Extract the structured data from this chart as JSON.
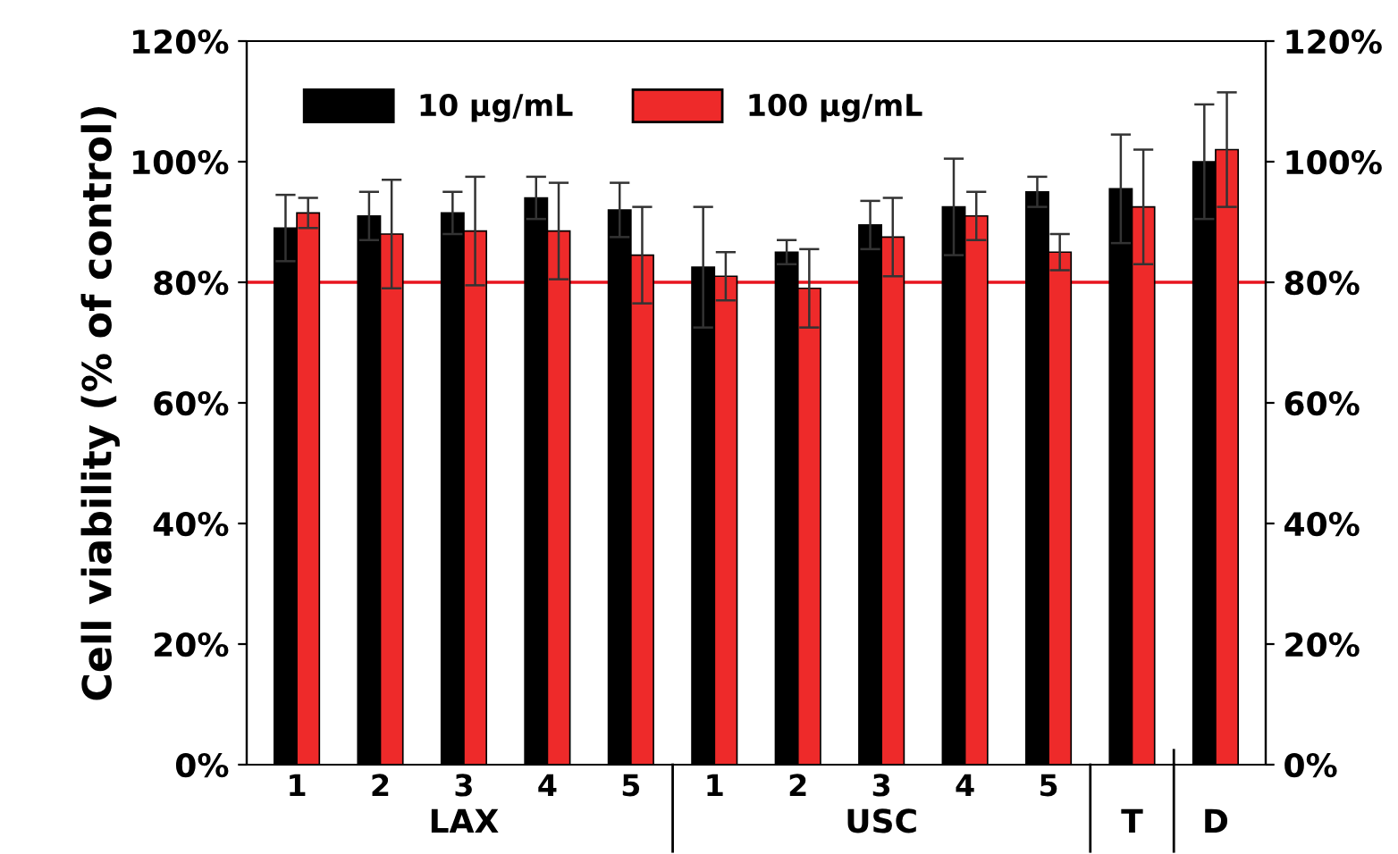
{
  "chart_data": {
    "type": "bar",
    "ylabel": "Cell viability (% of control)",
    "categories": [
      "1",
      "2",
      "3",
      "4",
      "5",
      "1",
      "2",
      "3",
      "4",
      "5",
      "T",
      "D"
    ],
    "series": [
      {
        "name": "10 μg/mL",
        "color": "#000000",
        "values": [
          89,
          91,
          91.5,
          94,
          92,
          82.5,
          85,
          89.5,
          92.5,
          95,
          95.5,
          100
        ],
        "errors": [
          5.5,
          4,
          3.5,
          3.5,
          4.5,
          10,
          2,
          4,
          8,
          2.5,
          9,
          9.5
        ]
      },
      {
        "name": "100 μg/mL",
        "color": "#ee2a2a",
        "values": [
          91.5,
          88,
          88.5,
          88.5,
          84.5,
          81,
          79,
          87.5,
          91,
          85,
          92.5,
          102
        ],
        "errors": [
          2.5,
          9,
          9,
          8,
          8,
          4,
          6.5,
          6.5,
          4,
          3,
          9.5,
          9.5
        ]
      }
    ],
    "ylim": [
      0,
      120
    ],
    "yticks": [
      {
        "value": 0,
        "label": "0%"
      },
      {
        "value": 20,
        "label": "20%"
      },
      {
        "value": 40,
        "label": "40%"
      },
      {
        "value": 60,
        "label": "60%"
      },
      {
        "value": 80,
        "label": "80%"
      },
      {
        "value": 100,
        "label": "100%"
      },
      {
        "value": 120,
        "label": "120%"
      }
    ],
    "y2lim": [
      0,
      120
    ],
    "y2ticks": [
      {
        "value": 0,
        "label": "0%"
      },
      {
        "value": 20,
        "label": "20%"
      },
      {
        "value": 40,
        "label": "40%"
      },
      {
        "value": 60,
        "label": "60%"
      },
      {
        "value": 80,
        "label": "80%"
      },
      {
        "value": 100,
        "label": "100%"
      },
      {
        "value": 120,
        "label": "120%"
      }
    ],
    "ref_lines": [
      {
        "axis": "y",
        "value": 80,
        "color": "#e8141e"
      }
    ],
    "annotations": [
      "LAX",
      "USC"
    ],
    "legend": "top left",
    "grid": false
  }
}
